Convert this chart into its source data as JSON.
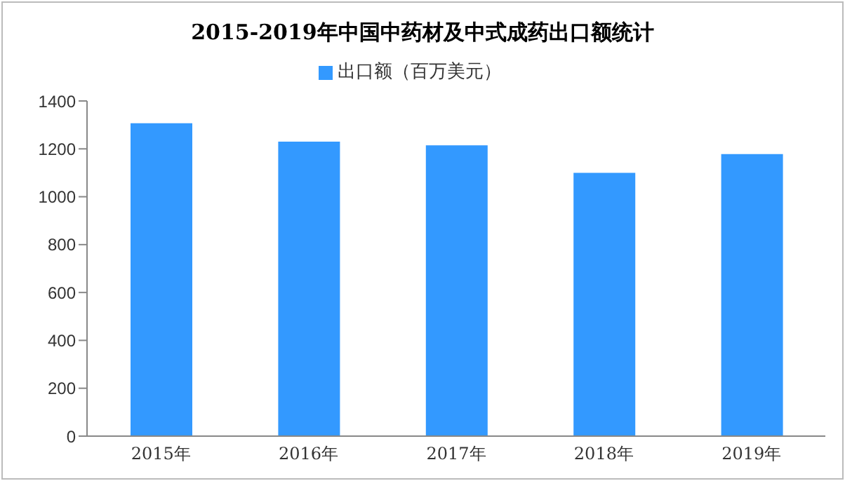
{
  "chart_data": {
    "type": "bar",
    "title": "2015-2019年中国中药材及中式成药出口额统计",
    "categories": [
      "2015年",
      "2016年",
      "2017年",
      "2018年",
      "2019年"
    ],
    "series": [
      {
        "name": "出口额（百万美元）",
        "color": "#3399ff",
        "values": [
          1307,
          1230,
          1215,
          1100,
          1178
        ]
      }
    ],
    "ylim": [
      0,
      1400
    ],
    "yticks": [
      0,
      200,
      400,
      600,
      800,
      1000,
      1200,
      1400
    ],
    "grid": false,
    "legend": "top"
  }
}
